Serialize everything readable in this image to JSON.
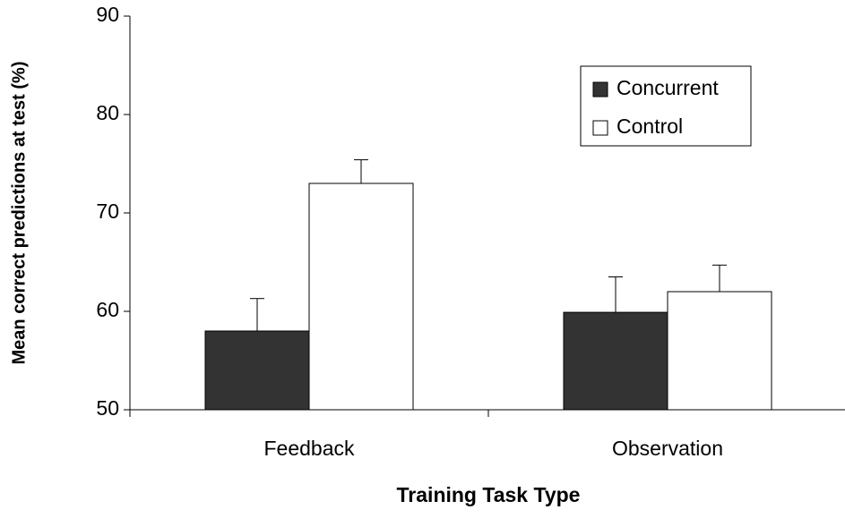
{
  "chart_data": {
    "type": "bar",
    "x_label": "Training Task Type",
    "y_label": "Mean correct predictions at test (%)",
    "categories": [
      "Feedback",
      "Observation"
    ],
    "series": [
      {
        "name": "Concurrent",
        "color": "#333333",
        "values": [
          58,
          59.9
        ],
        "errors": [
          3.3,
          3.6
        ]
      },
      {
        "name": "Control",
        "color": "#ffffff",
        "values": [
          73,
          62
        ],
        "errors": [
          2.4,
          2.7
        ]
      }
    ],
    "ylim": [
      50,
      90
    ],
    "yticks": [
      50,
      60,
      70,
      80,
      90
    ],
    "grid": false,
    "legend": "upper right"
  }
}
